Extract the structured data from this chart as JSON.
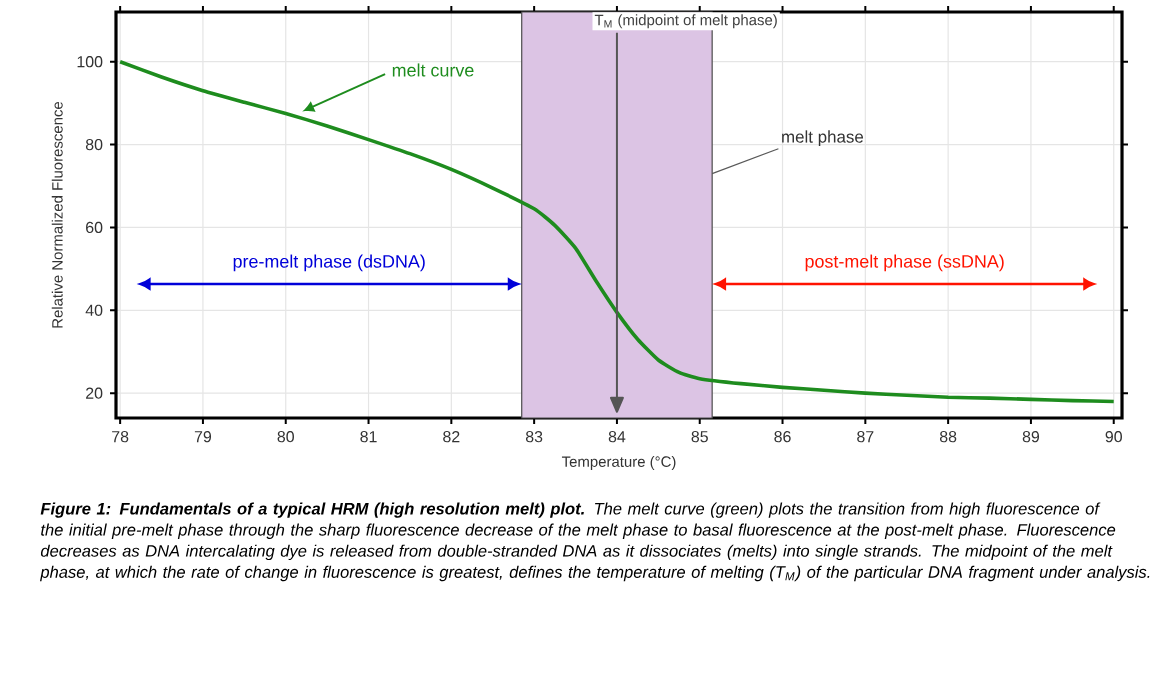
{
  "chart_data": {
    "type": "line",
    "xlabel": "Temperature (°C)",
    "ylabel": "Relative Normalized Fluorescence",
    "x": [
      78,
      78.5,
      79,
      79.5,
      80,
      80.5,
      81,
      81.5,
      82,
      82.5,
      83,
      83.25,
      83.5,
      83.75,
      84,
      84.25,
      84.5,
      84.75,
      85,
      85.5,
      86,
      86.5,
      87,
      87.5,
      88,
      88.5,
      89,
      89.5,
      90
    ],
    "series": [
      {
        "color": "#1e8c1e",
        "values": [
          100,
          96.3,
          93,
          90.2,
          87.5,
          84.5,
          81.2,
          77.8,
          74,
          69.5,
          64.5,
          60.5,
          55,
          47,
          39.5,
          33,
          28,
          25,
          23.5,
          22.3,
          21.4,
          20.7,
          20,
          19.5,
          19,
          18.8,
          18.5,
          18.2,
          18
        ]
      }
    ],
    "xlim": [
      77.95,
      90.1
    ],
    "ylim": [
      14,
      112
    ],
    "xticks": [
      78,
      79,
      80,
      81,
      82,
      83,
      84,
      85,
      86,
      87,
      88,
      89,
      90
    ],
    "yticks": [
      20,
      40,
      60,
      80,
      100
    ],
    "grid": true,
    "bands": [
      {
        "axis": "x",
        "from": 82.85,
        "to": 85.15,
        "label": "melt phase",
        "color": "#dcc4e4"
      }
    ],
    "ref_lines": [
      {
        "axis": "x",
        "value": 84,
        "label": "T$_{M}$ (midpoint of melt phase)",
        "color": "#555555"
      }
    ],
    "annotations": [
      {
        "text": "melt curve",
        "x": 80.2,
        "y": 87
      },
      "pre-melt phase (dsDNA)",
      "post-melt phase (ssDNA)",
      "**Figure 1: Fundamentals of a typical HRM (high resolution melt) plot.** The melt curve (green) plots the transition from high fluorescence of the initial pre-melt phase through the sharp fluorescence decrease of the melt phase to basal fluorescence at the post-melt phase. Fluorescence decreases as DNA intercalating dye is released from double-stranded DNA as it dissociates (melts) into single strands. The midpoint of the melt phase, at which the rate of change in fluorescence is greatest, defines the temperature of melting (T$_{M}$) of the particular DNA fragment under analysis."
    ]
  }
}
